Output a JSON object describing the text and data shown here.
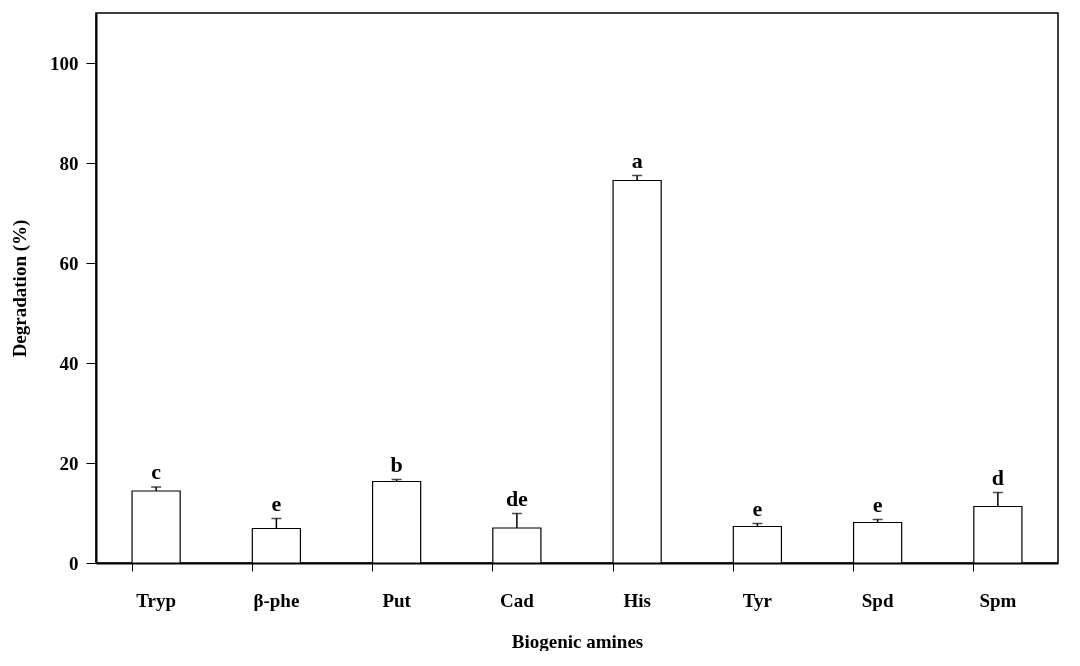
{
  "chart_data": {
    "type": "bar",
    "xlabel": "Biogenic amines",
    "ylabel": "Degradation (%)",
    "categories": [
      "Tryp",
      "β-phe",
      "Put",
      "Cad",
      "His",
      "Tyr",
      "Spd",
      "Spm"
    ],
    "values": [
      14.4,
      6.9,
      16.3,
      7.0,
      76.5,
      7.3,
      8.1,
      11.3
    ],
    "errors": [
      0.8,
      2.0,
      0.4,
      2.9,
      1.0,
      0.6,
      0.6,
      2.8
    ],
    "color": "#ffffff",
    "ylim": [
      0,
      110
    ],
    "yticks": [
      0,
      20,
      40,
      60,
      80,
      100
    ],
    "grid": false,
    "annotations": [
      {
        "text": "c",
        "x": "Tryp",
        "y": 15.2
      },
      {
        "text": "e",
        "x": "β-phe",
        "y": 8.9
      },
      {
        "text": "b",
        "x": "Put",
        "y": 16.6
      },
      {
        "text": "de",
        "x": "Cad",
        "y": 9.9
      },
      {
        "text": "a",
        "x": "His",
        "y": 77.5
      },
      {
        "text": "e",
        "x": "Tyr",
        "y": 7.9
      },
      {
        "text": "e",
        "x": "Spd",
        "y": 8.7
      },
      {
        "text": "d",
        "x": "Spm",
        "y": 14.1
      }
    ]
  }
}
